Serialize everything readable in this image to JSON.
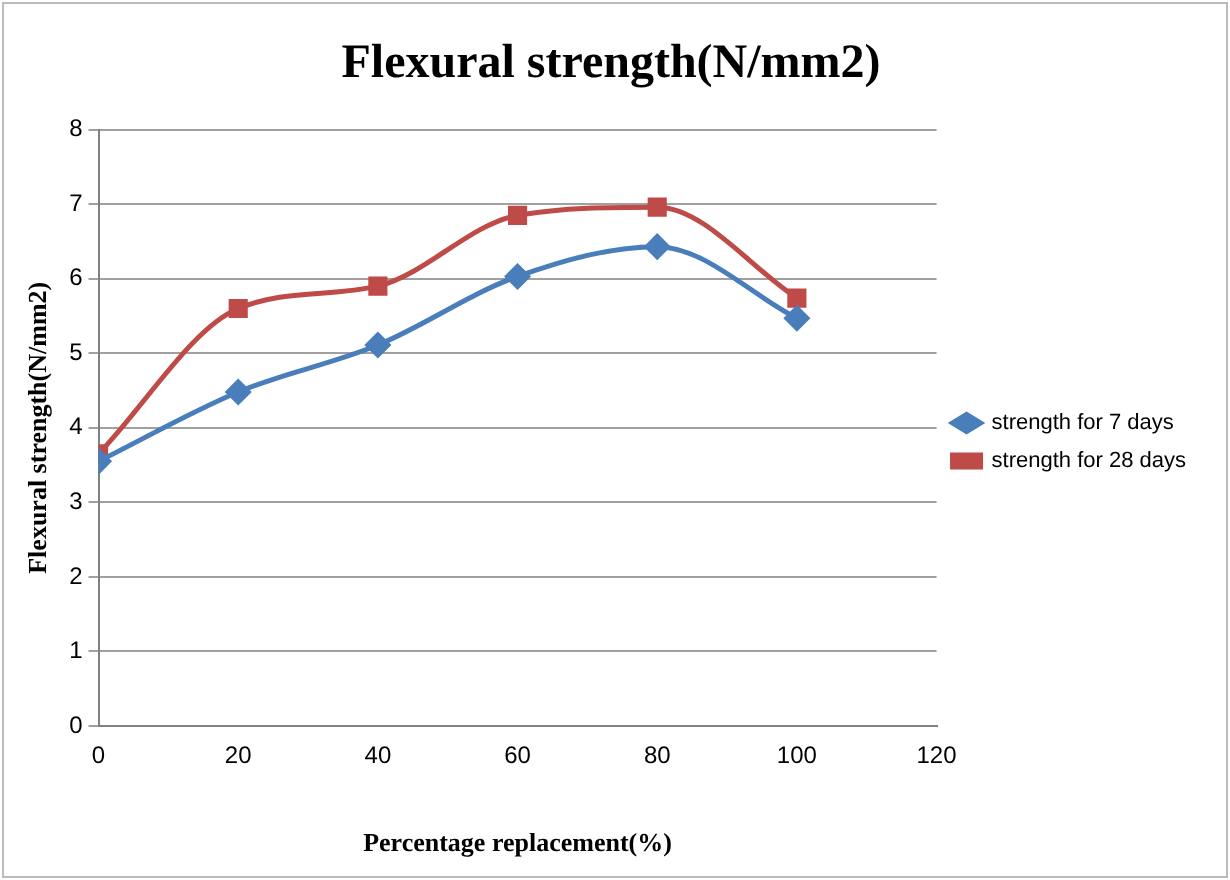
{
  "chart_data": {
    "type": "line",
    "title": "Flexural strength(N/mm2)",
    "xlabel": "Percentage replacement(%)",
    "ylabel": "Flexural strength(N/mm2)",
    "x": [
      0,
      20,
      40,
      60,
      80,
      100
    ],
    "series": [
      {
        "name": "strength for 7 days",
        "color": "#4a7ebb",
        "marker": "diamond",
        "values": [
          3.55,
          4.48,
          5.11,
          6.03,
          6.43,
          5.47
        ]
      },
      {
        "name": "strength for 28 days",
        "color": "#be4b48",
        "marker": "square",
        "values": [
          3.65,
          5.6,
          5.9,
          6.85,
          6.96,
          5.74
        ]
      }
    ],
    "xlim": [
      0,
      120
    ],
    "xticks": [
      0,
      20,
      40,
      60,
      80,
      100,
      120
    ],
    "ylim": [
      0,
      8
    ],
    "yticks": [
      0,
      1,
      2,
      3,
      4,
      5,
      6,
      7,
      8
    ],
    "grid": "y",
    "legend": "right",
    "line_style": "solid"
  }
}
